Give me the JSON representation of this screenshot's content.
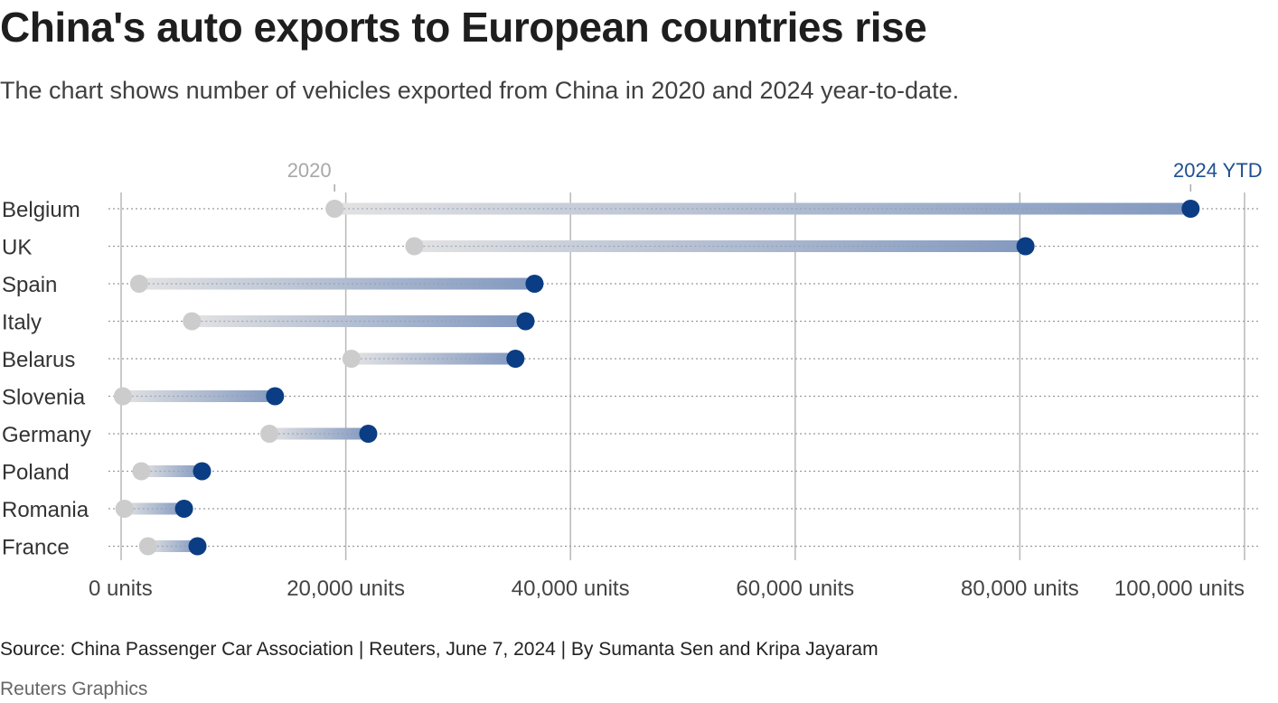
{
  "header": {
    "title": "China's auto exports to European countries rise",
    "subtitle": "The chart shows number of vehicles exported from China in 2020 and 2024 year-to-date."
  },
  "footer": {
    "source": "Source: China Passenger Car Association | Reuters, June 7, 2024 | By Sumanta Sen and Kripa Jayaram",
    "credit": "Reuters Graphics"
  },
  "colors": {
    "dot_2020": "#cccccc",
    "dot_2024": "#0b3d84",
    "bar_start": "#e2e2e2",
    "bar_end": "#8299c0",
    "grid": "#b8b8b8",
    "row_dots": "#9a9a9a"
  },
  "chart_data": {
    "type": "dumbbell",
    "title": "China's auto exports to European countries rise",
    "subtitle": "The chart shows number of vehicles exported from China in 2020 and 2024 year-to-date.",
    "xlabel": "",
    "ylabel": "",
    "xlim": [
      0,
      100000
    ],
    "grid": true,
    "legend": {
      "placement": "top",
      "entries": [
        "2020",
        "2024 YTD"
      ]
    },
    "x_ticks": [
      0,
      20000,
      40000,
      60000,
      80000,
      100000
    ],
    "x_tick_labels": [
      "0 units",
      "20,000 units",
      "40,000 units",
      "60,000 units",
      "80,000 units",
      "100,000 units"
    ],
    "categories": [
      "Belgium",
      "UK",
      "Spain",
      "Italy",
      "Belarus",
      "Slovenia",
      "Germany",
      "Poland",
      "Romania",
      "France"
    ],
    "series": [
      {
        "name": "2020",
        "values": [
          19000,
          26100,
          1600,
          6300,
          20500,
          150,
          13200,
          1800,
          300,
          2400
        ]
      },
      {
        "name": "2024 YTD",
        "values": [
          95200,
          80500,
          36800,
          36000,
          35100,
          13700,
          22000,
          7200,
          5600,
          6800
        ]
      }
    ]
  }
}
